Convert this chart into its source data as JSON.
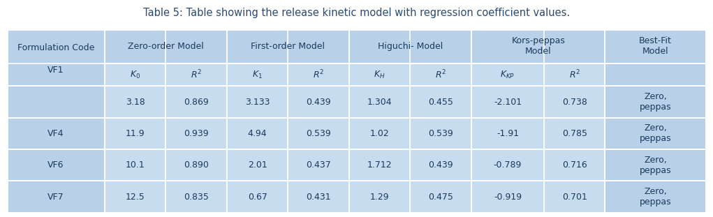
{
  "title": "Table 5: Table showing the release kinetic model with regression coefficient values.",
  "title_color": "#2B4B6F",
  "title_fontsize": 10.5,
  "outer_bg": "#B8D0E8",
  "inner_bg": "#C8DCF0",
  "text_color": "#1a3a5c",
  "data_rows": [
    [
      "3.18",
      "0.869",
      "3.133",
      "0.439",
      "1.304",
      "0.455",
      "-2.101",
      "0.738",
      "Zero,\npeppas"
    ],
    [
      "11.9",
      "0.939",
      "4.94",
      "0.539",
      "1.02",
      "0.539",
      "-1.91",
      "0.785",
      "Zero,\npeppas"
    ],
    [
      "10.1",
      "0.890",
      "2.01",
      "0.437",
      "1.712",
      "0.439",
      "-0.789",
      "0.716",
      "Zero,\npeppas"
    ],
    [
      "12.5",
      "0.835",
      "0.67",
      "0.431",
      "1.29",
      "0.475",
      "-0.919",
      "0.701",
      "Zero,\npeppas"
    ]
  ],
  "row_labels": [
    "VF1",
    "VF4",
    "VF6",
    "VF7"
  ],
  "fig_width": 10.21,
  "fig_height": 3.11
}
